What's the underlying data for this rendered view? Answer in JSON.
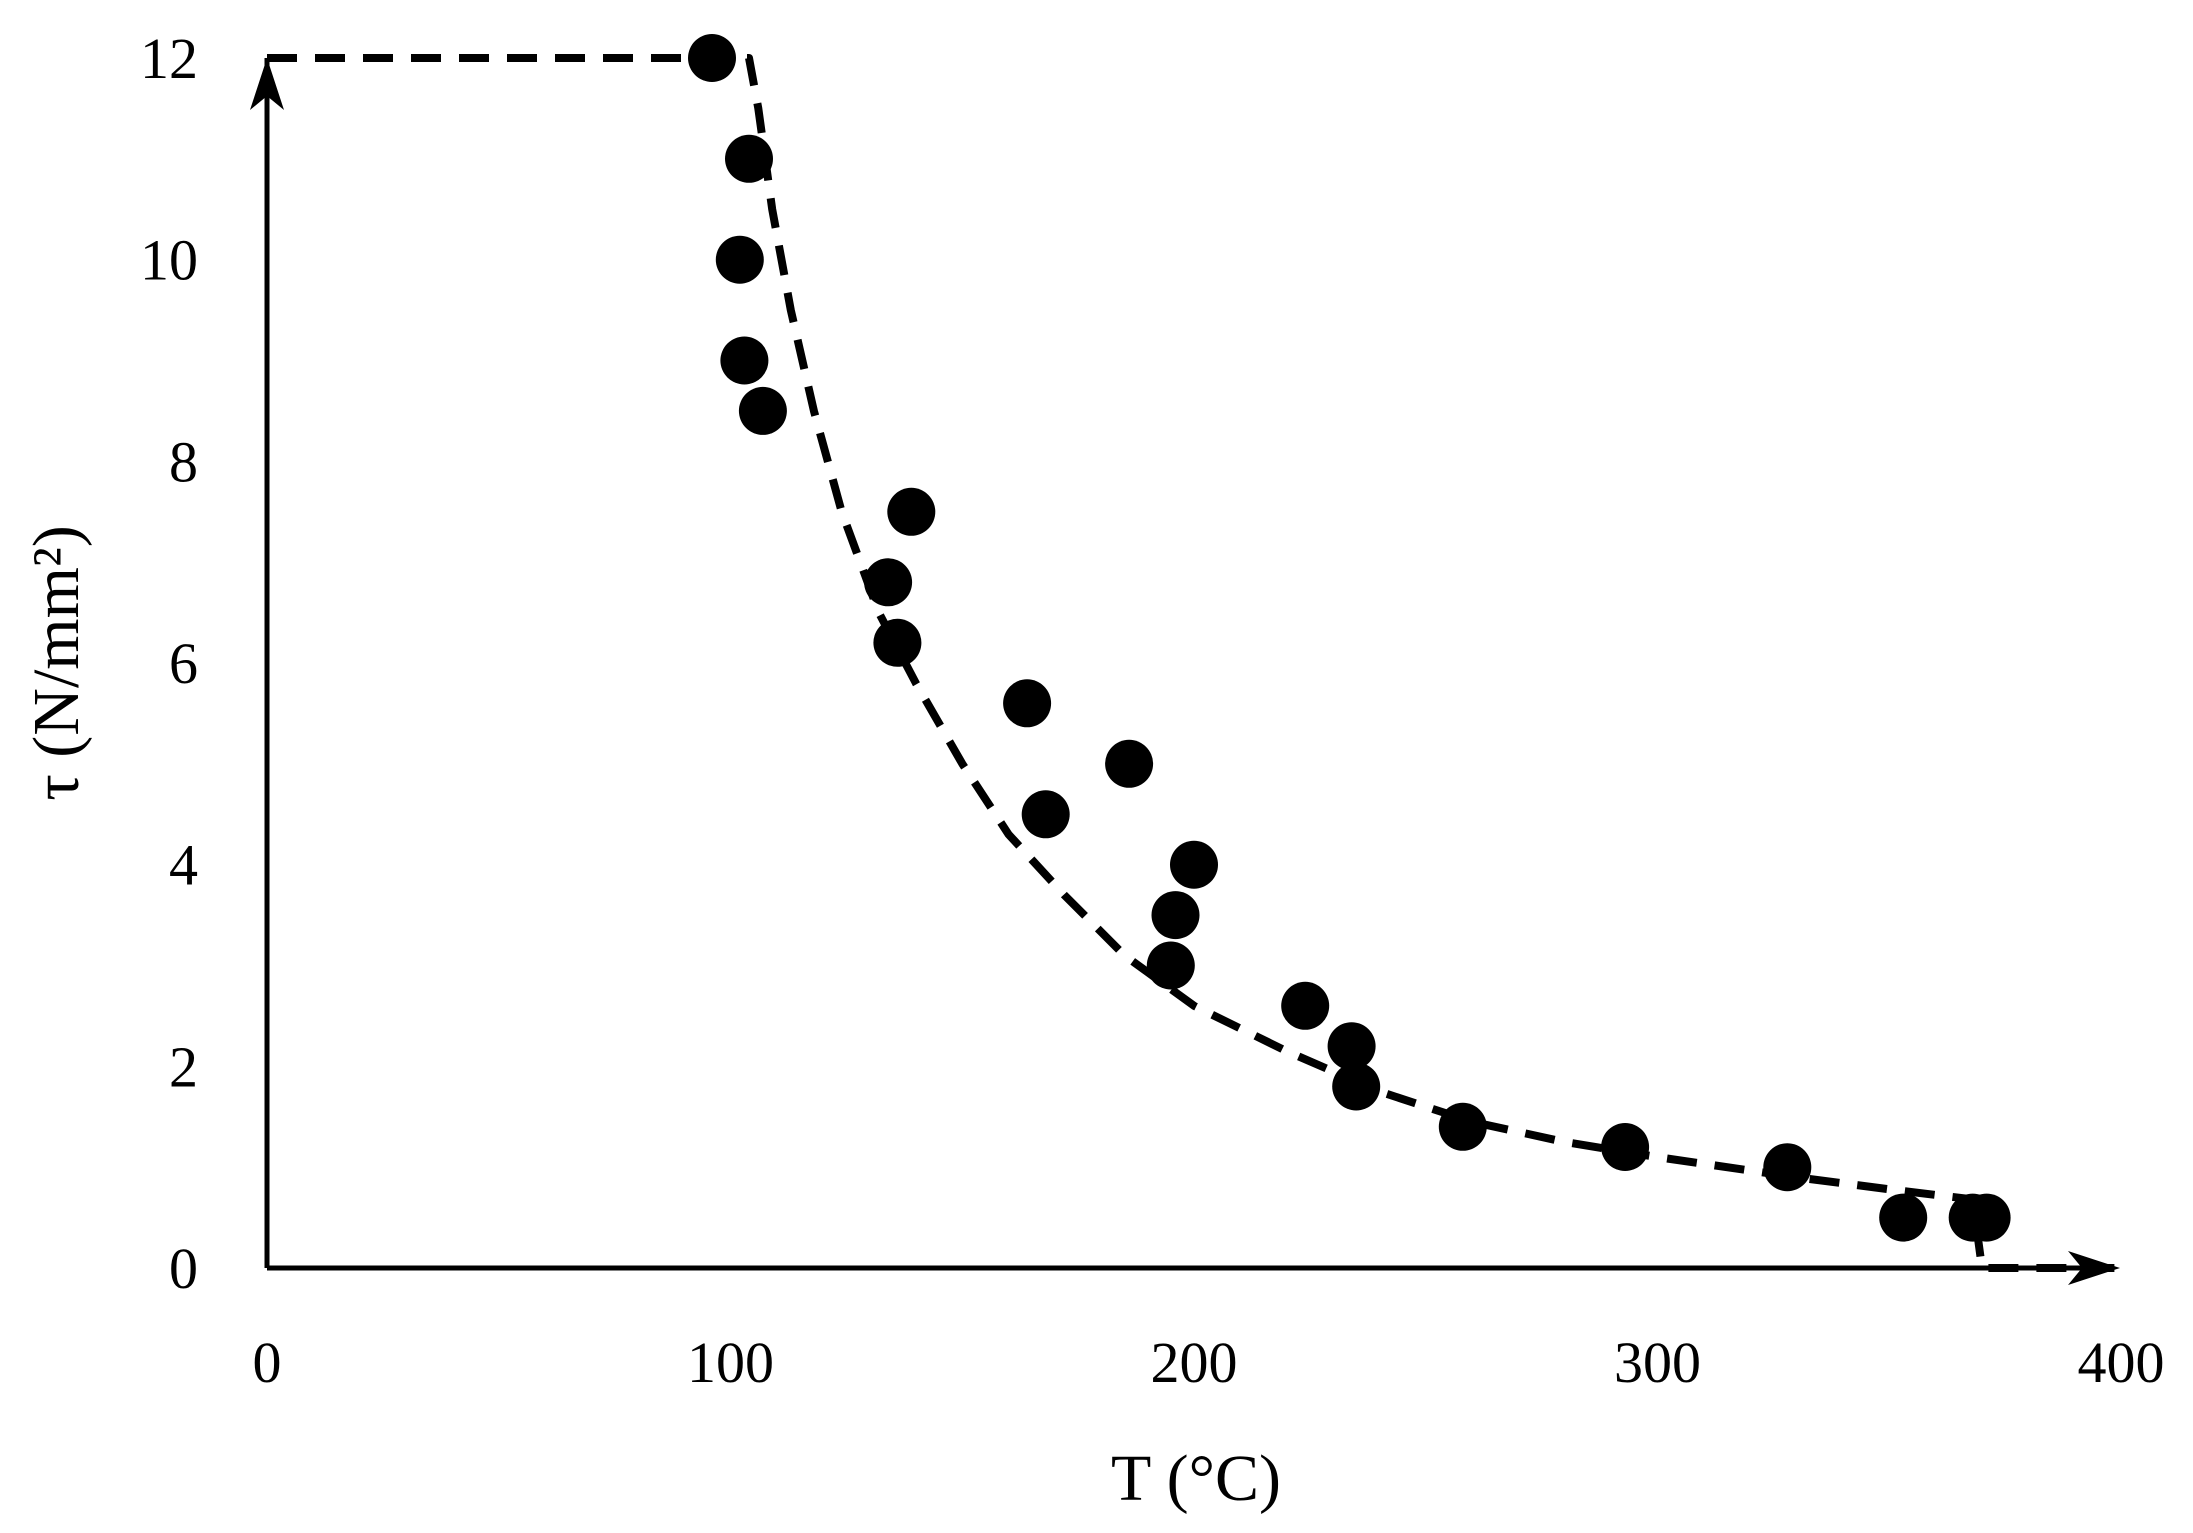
{
  "chart_data": {
    "type": "scatter",
    "xlabel": "T (°C)",
    "ylabel": "τ (N/mm²)",
    "xlim": [
      0,
      400
    ],
    "ylim": [
      0,
      12
    ],
    "x_ticks": [
      "0",
      "100",
      "200",
      "300",
      "400"
    ],
    "y_ticks": [
      "0",
      "2",
      "4",
      "6",
      "8",
      "10",
      "12"
    ],
    "grid": false,
    "legend": "none",
    "marker_color": "#000000",
    "series": [
      {
        "kind": "points",
        "points": [
          {
            "x": 96,
            "y": 12.0
          },
          {
            "x": 104,
            "y": 11.0
          },
          {
            "x": 102,
            "y": 10.0
          },
          {
            "x": 103,
            "y": 9.0
          },
          {
            "x": 107,
            "y": 8.5
          },
          {
            "x": 139,
            "y": 7.5
          },
          {
            "x": 134,
            "y": 6.8
          },
          {
            "x": 136,
            "y": 6.2
          },
          {
            "x": 164,
            "y": 5.6
          },
          {
            "x": 168,
            "y": 4.5
          },
          {
            "x": 186,
            "y": 5.0
          },
          {
            "x": 200,
            "y": 4.0
          },
          {
            "x": 196,
            "y": 3.5
          },
          {
            "x": 195,
            "y": 3.0
          },
          {
            "x": 224,
            "y": 2.6
          },
          {
            "x": 234,
            "y": 2.2
          },
          {
            "x": 235,
            "y": 1.8
          },
          {
            "x": 258,
            "y": 1.4
          },
          {
            "x": 293,
            "y": 1.2
          },
          {
            "x": 328,
            "y": 1.0
          },
          {
            "x": 353,
            "y": 0.5
          },
          {
            "x": 368,
            "y": 0.5
          },
          {
            "x": 371,
            "y": 0.5
          }
        ]
      },
      {
        "kind": "dashed-curve",
        "points": [
          {
            "x": 0,
            "y": 12.0
          },
          {
            "x": 104,
            "y": 12.0
          },
          {
            "x": 106,
            "y": 11.5
          },
          {
            "x": 109,
            "y": 10.5
          },
          {
            "x": 113,
            "y": 9.5
          },
          {
            "x": 118,
            "y": 8.5
          },
          {
            "x": 124,
            "y": 7.5
          },
          {
            "x": 132,
            "y": 6.5
          },
          {
            "x": 140,
            "y": 5.8
          },
          {
            "x": 150,
            "y": 5.0
          },
          {
            "x": 160,
            "y": 4.3
          },
          {
            "x": 172,
            "y": 3.7
          },
          {
            "x": 185,
            "y": 3.1
          },
          {
            "x": 200,
            "y": 2.6
          },
          {
            "x": 220,
            "y": 2.15
          },
          {
            "x": 240,
            "y": 1.75
          },
          {
            "x": 260,
            "y": 1.45
          },
          {
            "x": 280,
            "y": 1.25
          },
          {
            "x": 300,
            "y": 1.1
          },
          {
            "x": 330,
            "y": 0.9
          },
          {
            "x": 350,
            "y": 0.78
          },
          {
            "x": 368,
            "y": 0.68
          },
          {
            "x": 370,
            "y": 0.0
          },
          {
            "x": 400,
            "y": 0.0
          }
        ]
      }
    ]
  }
}
